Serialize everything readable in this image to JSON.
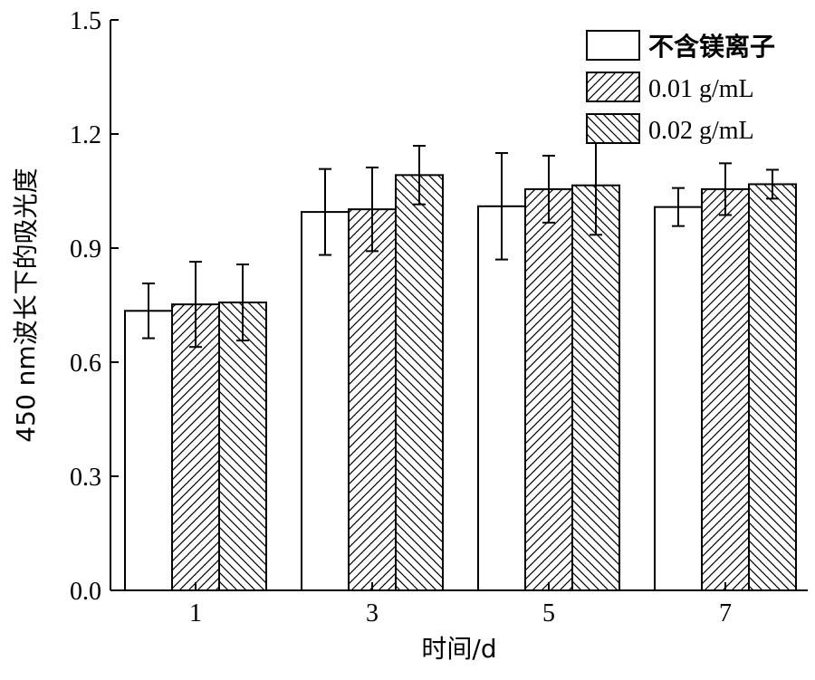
{
  "chart_data": {
    "type": "bar",
    "xlabel": "时间/d",
    "ylabel": "450 nm波长下的吸光度",
    "categories": [
      "1",
      "3",
      "5",
      "7"
    ],
    "ylim": [
      0,
      1.5
    ],
    "yticks": [
      "0.0",
      "0.3",
      "0.6",
      "0.9",
      "1.2",
      "1.5"
    ],
    "grid": false,
    "legend_position": "top-right",
    "series": [
      {
        "name": "不含镁离子",
        "pattern": "none",
        "values": [
          0.735,
          0.995,
          1.01,
          1.008
        ],
        "errors": [
          0.072,
          0.113,
          0.14,
          0.05
        ]
      },
      {
        "name": "0.01 g/mL",
        "pattern": "forward-hatch",
        "values": [
          0.752,
          1.002,
          1.055,
          1.055
        ],
        "errors": [
          0.112,
          0.11,
          0.088,
          0.068
        ]
      },
      {
        "name": "0.02 g/mL",
        "pattern": "back-hatch",
        "values": [
          0.757,
          1.092,
          1.065,
          1.068
        ],
        "errors": [
          0.1,
          0.077,
          0.13,
          0.038
        ]
      }
    ]
  }
}
